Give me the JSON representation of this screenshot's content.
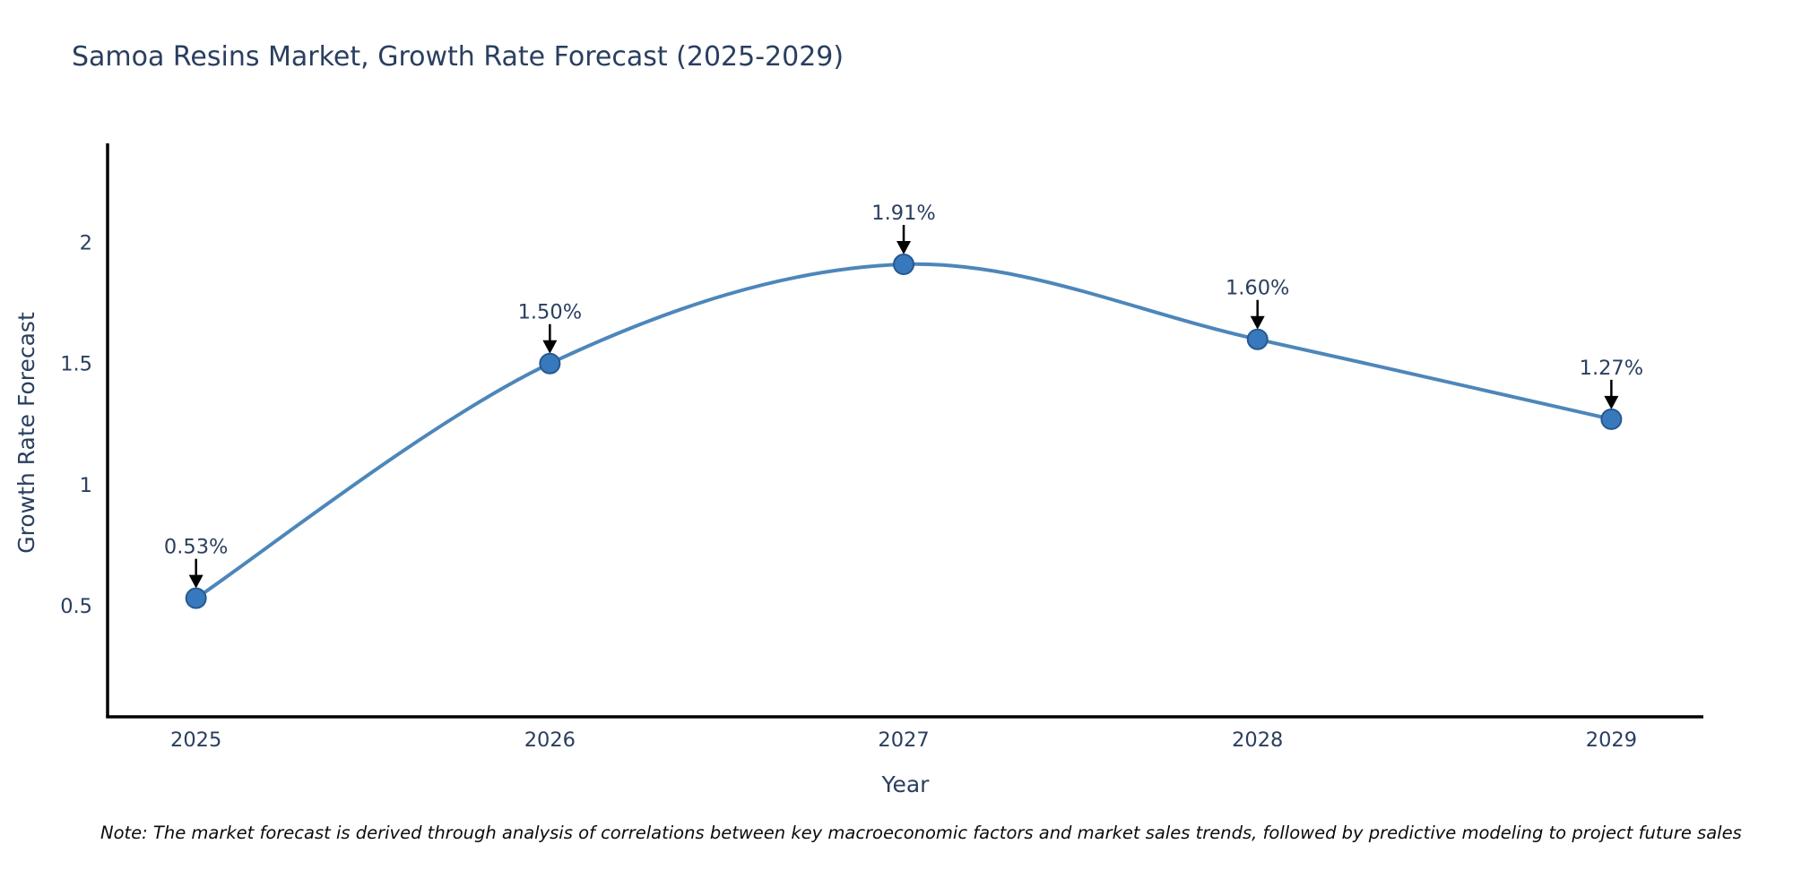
{
  "note": "Note: The market forecast is derived through analysis of correlations between key macroeconomic factors and market sales trends, followed by predictive modeling to project future sales",
  "chart_data": {
    "type": "line",
    "title": "Samoa Resins Market, Growth Rate Forecast (2025-2029)",
    "xlabel": "Year",
    "ylabel": "Growth Rate Forecast",
    "x": [
      2025,
      2026,
      2027,
      2028,
      2029
    ],
    "values": [
      0.53,
      1.5,
      1.91,
      1.6,
      1.27
    ],
    "point_labels": [
      "0.53%",
      "1.50%",
      "1.91%",
      "1.60%",
      "1.27%"
    ],
    "xtick_labels": [
      "2025",
      "2026",
      "2027",
      "2028",
      "2029"
    ],
    "yticks": [
      0.5,
      1,
      1.5,
      2
    ],
    "ytick_labels": [
      "0.5",
      "1",
      "1.5",
      "2"
    ],
    "xlim": [
      2024.75,
      2029.26
    ],
    "ylim": [
      0.04,
      2.41
    ],
    "line_shape": "spline",
    "grid": false,
    "legend_position": "none",
    "colors": {
      "line": "#4d86ba",
      "marker_fill": "#3879bd",
      "marker_edge": "#26598f",
      "text": "#2a3f5f",
      "axis": "#000000",
      "annotation": "#2a3f5f",
      "arrow": "#000000"
    }
  }
}
